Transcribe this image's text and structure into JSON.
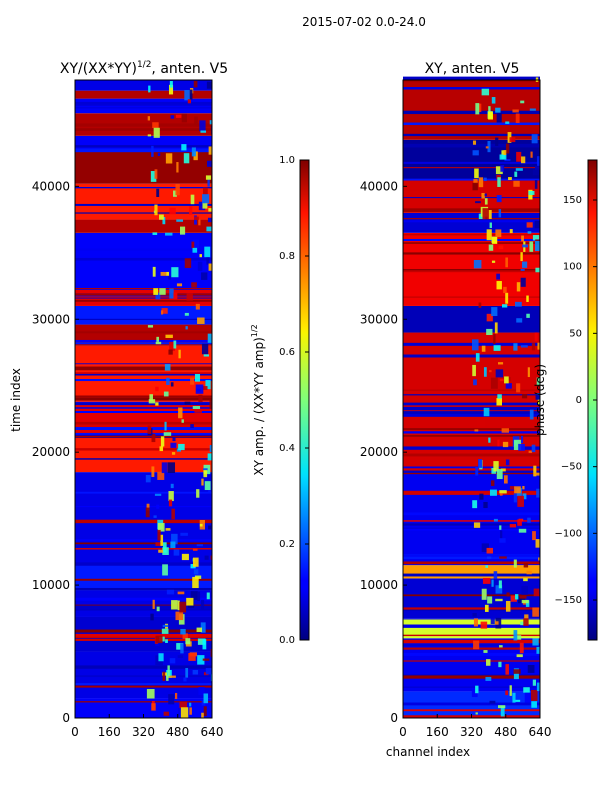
{
  "figure_title": "2015-07-02 0.0-24.0",
  "chart_data": [
    {
      "type": "heatmap",
      "title": "XY/(XX*YY)^1/2, anten. V5",
      "title_main": "XY/(XX*YY)",
      "title_exp": "1/2",
      "title_rest": ", anten. V5",
      "xlabel": "",
      "ylabel": "time index",
      "xlim": [
        0,
        640
      ],
      "ylim": [
        0,
        48000
      ],
      "xticks": [
        0,
        160,
        320,
        480,
        640
      ],
      "yticks": [
        0,
        10000,
        20000,
        30000,
        40000
      ],
      "colorbar": {
        "label": "XY amp. / (XX*YY amp)^1/2",
        "label_main": "XY amp. / (XX*YY amp)",
        "label_exp": "1/2",
        "range": [
          0.0,
          1.0
        ],
        "ticks": [
          0.0,
          0.2,
          0.4,
          0.6,
          0.8,
          1.0
        ],
        "tick_labels": [
          "0.0",
          "0.2",
          "0.4",
          "0.6",
          "0.8",
          "1.0"
        ],
        "colormap": "jet"
      },
      "bands": [
        {
          "y0": 0,
          "y1": 1500,
          "value": 0.12
        },
        {
          "y0": 1500,
          "y1": 5000,
          "value": 0.1
        },
        {
          "y0": 5000,
          "y1": 7600,
          "value": 0.08
        },
        {
          "y0": 7600,
          "y1": 9600,
          "value": 0.1
        },
        {
          "y0": 9600,
          "y1": 11500,
          "value": 0.15
        },
        {
          "y0": 11500,
          "y1": 18500,
          "value": 0.1
        },
        {
          "y0": 18500,
          "y1": 21200,
          "value": 0.85
        },
        {
          "y0": 21200,
          "y1": 23800,
          "value": 0.9
        },
        {
          "y0": 23800,
          "y1": 28000,
          "value": 0.85
        },
        {
          "y0": 28000,
          "y1": 29600,
          "value": 0.95
        },
        {
          "y0": 29600,
          "y1": 31000,
          "value": 0.15
        },
        {
          "y0": 31000,
          "y1": 32200,
          "value": 0.9
        },
        {
          "y0": 32200,
          "y1": 36500,
          "value": 0.12
        },
        {
          "y0": 36500,
          "y1": 37500,
          "value": 0.95
        },
        {
          "y0": 37500,
          "y1": 40200,
          "value": 0.85
        },
        {
          "y0": 40200,
          "y1": 42800,
          "value": 0.98
        },
        {
          "y0": 42800,
          "y1": 43800,
          "value": 0.12
        },
        {
          "y0": 43800,
          "y1": 45500,
          "value": 0.95
        },
        {
          "y0": 45500,
          "y1": 46600,
          "value": 0.12
        },
        {
          "y0": 46600,
          "y1": 47200,
          "value": 0.95
        },
        {
          "y0": 47200,
          "y1": 48000,
          "value": 0.1
        }
      ]
    },
    {
      "type": "heatmap",
      "title": "XY, anten. V5",
      "xlabel": "channel index",
      "ylabel": "",
      "xlim": [
        0,
        640
      ],
      "ylim": [
        0,
        48000
      ],
      "xticks": [
        0,
        160,
        320,
        480,
        640
      ],
      "yticks": [
        0,
        10000,
        20000,
        30000,
        40000
      ],
      "colorbar": {
        "label": "phase (deg)",
        "range": [
          -180,
          180
        ],
        "ticks": [
          -150,
          -100,
          -50,
          0,
          50,
          100,
          150
        ],
        "tick_labels": [
          "−150",
          "−100",
          "−50",
          "0",
          "50",
          "100",
          "150"
        ],
        "colormap": "jet"
      },
      "bands": [
        {
          "y0": 0,
          "y1": 2000,
          "value": -120
        },
        {
          "y0": 2000,
          "y1": 6000,
          "value": -140
        },
        {
          "y0": 6000,
          "y1": 7500,
          "value": 30
        },
        {
          "y0": 7500,
          "y1": 10500,
          "value": -150
        },
        {
          "y0": 10500,
          "y1": 11500,
          "value": 80
        },
        {
          "y0": 11500,
          "y1": 18500,
          "value": -140
        },
        {
          "y0": 18500,
          "y1": 29000,
          "value": 150
        },
        {
          "y0": 29000,
          "y1": 31000,
          "value": -160
        },
        {
          "y0": 31000,
          "y1": 36500,
          "value": 140
        },
        {
          "y0": 36500,
          "y1": 38000,
          "value": -150
        },
        {
          "y0": 38000,
          "y1": 40500,
          "value": 150
        },
        {
          "y0": 40500,
          "y1": 43500,
          "value": -170
        },
        {
          "y0": 43500,
          "y1": 48000,
          "value": 160
        }
      ]
    }
  ]
}
